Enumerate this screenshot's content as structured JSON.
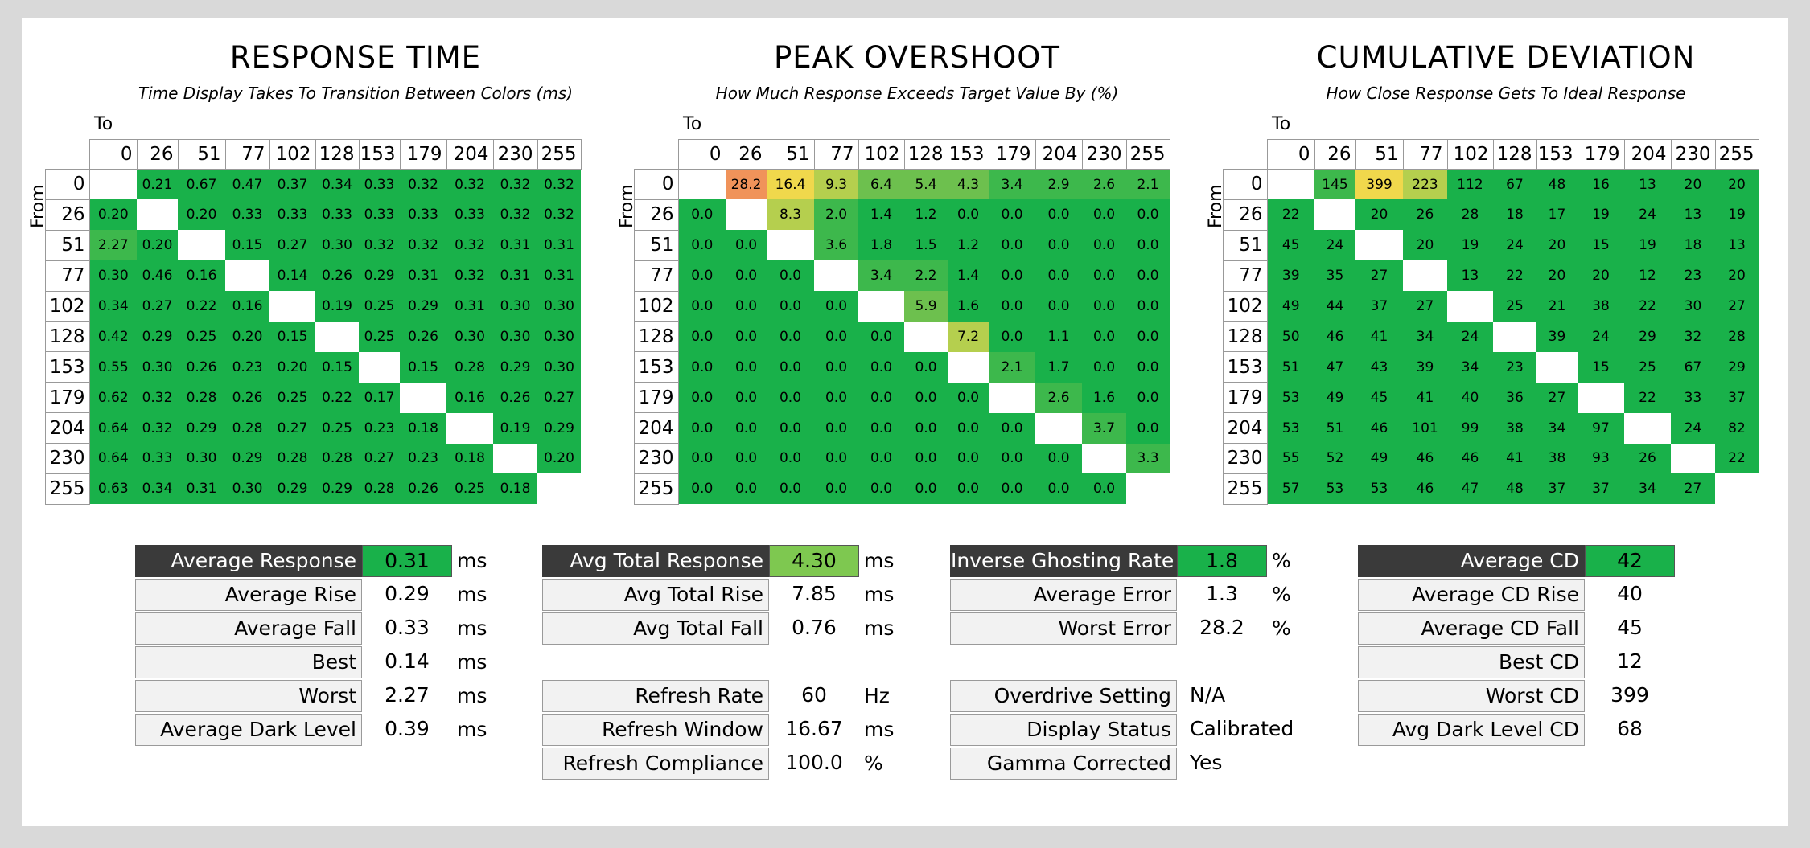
{
  "colors": {
    "good": "#19b14a",
    "mid_green": "#3db84c",
    "yellow_green": "#b5cf4e",
    "yellow": "#f0d84c",
    "orange": "#f0935a",
    "diagonal": "#ffffff"
  },
  "chart_data": [
    {
      "type": "heatmap",
      "title": "RESPONSE TIME",
      "subtitle": "Time Display Takes To Transition Between Colors (ms)",
      "x_axis_label": "To",
      "y_axis_label": "From",
      "columns": [
        "0",
        "26",
        "51",
        "77",
        "102",
        "128",
        "153",
        "179",
        "204",
        "230",
        "255"
      ],
      "rows": [
        "0",
        "26",
        "51",
        "77",
        "102",
        "128",
        "153",
        "179",
        "204",
        "230",
        "255"
      ],
      "values": [
        [
          "",
          "0.21",
          "0.67",
          "0.47",
          "0.37",
          "0.34",
          "0.33",
          "0.32",
          "0.32",
          "0.32",
          "0.32"
        ],
        [
          "0.20",
          "",
          "0.20",
          "0.33",
          "0.33",
          "0.33",
          "0.33",
          "0.33",
          "0.33",
          "0.32",
          "0.32"
        ],
        [
          "2.27",
          "0.20",
          "",
          "0.15",
          "0.27",
          "0.30",
          "0.32",
          "0.32",
          "0.32",
          "0.31",
          "0.31"
        ],
        [
          "0.30",
          "0.46",
          "0.16",
          "",
          "0.14",
          "0.26",
          "0.29",
          "0.31",
          "0.32",
          "0.31",
          "0.31"
        ],
        [
          "0.34",
          "0.27",
          "0.22",
          "0.16",
          "",
          "0.19",
          "0.25",
          "0.29",
          "0.31",
          "0.30",
          "0.30"
        ],
        [
          "0.42",
          "0.29",
          "0.25",
          "0.20",
          "0.15",
          "",
          "0.25",
          "0.26",
          "0.30",
          "0.30",
          "0.30"
        ],
        [
          "0.55",
          "0.30",
          "0.26",
          "0.23",
          "0.20",
          "0.15",
          "",
          "0.15",
          "0.28",
          "0.29",
          "0.30"
        ],
        [
          "0.62",
          "0.32",
          "0.28",
          "0.26",
          "0.25",
          "0.22",
          "0.17",
          "",
          "0.16",
          "0.26",
          "0.27"
        ],
        [
          "0.64",
          "0.32",
          "0.29",
          "0.28",
          "0.27",
          "0.25",
          "0.23",
          "0.18",
          "",
          "0.19",
          "0.29"
        ],
        [
          "0.64",
          "0.33",
          "0.30",
          "0.29",
          "0.28",
          "0.28",
          "0.27",
          "0.23",
          "0.18",
          "",
          "0.20"
        ],
        [
          "0.63",
          "0.34",
          "0.31",
          "0.30",
          "0.29",
          "0.29",
          "0.28",
          "0.26",
          "0.25",
          "0.18",
          ""
        ]
      ]
    },
    {
      "type": "heatmap",
      "title": "PEAK OVERSHOOT",
      "subtitle": "How Much Response Exceeds Target Value By (%)",
      "x_axis_label": "To",
      "y_axis_label": "From",
      "columns": [
        "0",
        "26",
        "51",
        "77",
        "102",
        "128",
        "153",
        "179",
        "204",
        "230",
        "255"
      ],
      "rows": [
        "0",
        "26",
        "51",
        "77",
        "102",
        "128",
        "153",
        "179",
        "204",
        "230",
        "255"
      ],
      "values": [
        [
          "",
          "28.2",
          "16.4",
          "9.3",
          "6.4",
          "5.4",
          "4.3",
          "3.4",
          "2.9",
          "2.6",
          "2.1"
        ],
        [
          "0.0",
          "",
          "8.3",
          "2.0",
          "1.4",
          "1.2",
          "0.0",
          "0.0",
          "0.0",
          "0.0",
          "0.0"
        ],
        [
          "0.0",
          "0.0",
          "",
          "3.6",
          "1.8",
          "1.5",
          "1.2",
          "0.0",
          "0.0",
          "0.0",
          "0.0"
        ],
        [
          "0.0",
          "0.0",
          "0.0",
          "",
          "3.4",
          "2.2",
          "1.4",
          "0.0",
          "0.0",
          "0.0",
          "0.0"
        ],
        [
          "0.0",
          "0.0",
          "0.0",
          "0.0",
          "",
          "5.9",
          "1.6",
          "0.0",
          "0.0",
          "0.0",
          "0.0"
        ],
        [
          "0.0",
          "0.0",
          "0.0",
          "0.0",
          "0.0",
          "",
          "7.2",
          "0.0",
          "1.1",
          "0.0",
          "0.0"
        ],
        [
          "0.0",
          "0.0",
          "0.0",
          "0.0",
          "0.0",
          "0.0",
          "",
          "2.1",
          "1.7",
          "0.0",
          "0.0"
        ],
        [
          "0.0",
          "0.0",
          "0.0",
          "0.0",
          "0.0",
          "0.0",
          "0.0",
          "",
          "2.6",
          "1.6",
          "0.0"
        ],
        [
          "0.0",
          "0.0",
          "0.0",
          "0.0",
          "0.0",
          "0.0",
          "0.0",
          "0.0",
          "",
          "3.7",
          "0.0"
        ],
        [
          "0.0",
          "0.0",
          "0.0",
          "0.0",
          "0.0",
          "0.0",
          "0.0",
          "0.0",
          "0.0",
          "",
          "3.3"
        ],
        [
          "0.0",
          "0.0",
          "0.0",
          "0.0",
          "0.0",
          "0.0",
          "0.0",
          "0.0",
          "0.0",
          "0.0",
          ""
        ]
      ]
    },
    {
      "type": "heatmap",
      "title": "CUMULATIVE DEVIATION",
      "subtitle": "How Close Response Gets To Ideal Response",
      "x_axis_label": "To",
      "y_axis_label": "From",
      "columns": [
        "0",
        "26",
        "51",
        "77",
        "102",
        "128",
        "153",
        "179",
        "204",
        "230",
        "255"
      ],
      "rows": [
        "0",
        "26",
        "51",
        "77",
        "102",
        "128",
        "153",
        "179",
        "204",
        "230",
        "255"
      ],
      "values": [
        [
          "",
          "145",
          "399",
          "223",
          "112",
          "67",
          "48",
          "16",
          "13",
          "20",
          "20"
        ],
        [
          "22",
          "",
          "20",
          "26",
          "28",
          "18",
          "17",
          "19",
          "24",
          "13",
          "19"
        ],
        [
          "45",
          "24",
          "",
          "20",
          "19",
          "24",
          "20",
          "15",
          "19",
          "18",
          "13"
        ],
        [
          "39",
          "35",
          "27",
          "",
          "13",
          "22",
          "20",
          "20",
          "12",
          "23",
          "20"
        ],
        [
          "49",
          "44",
          "37",
          "27",
          "",
          "25",
          "21",
          "38",
          "22",
          "30",
          "27"
        ],
        [
          "50",
          "46",
          "41",
          "34",
          "24",
          "",
          "39",
          "24",
          "29",
          "32",
          "28"
        ],
        [
          "51",
          "47",
          "43",
          "39",
          "34",
          "23",
          "",
          "15",
          "25",
          "67",
          "29"
        ],
        [
          "53",
          "49",
          "45",
          "41",
          "40",
          "36",
          "27",
          "",
          "22",
          "33",
          "37"
        ],
        [
          "53",
          "51",
          "46",
          "101",
          "99",
          "38",
          "34",
          "97",
          "",
          "24",
          "82"
        ],
        [
          "55",
          "52",
          "49",
          "46",
          "46",
          "41",
          "38",
          "93",
          "26",
          "",
          "22"
        ],
        [
          "57",
          "53",
          "53",
          "46",
          "47",
          "48",
          "37",
          "37",
          "34",
          "27",
          ""
        ]
      ]
    }
  ],
  "stats": {
    "response": [
      {
        "label": "Average Response",
        "value": "0.31",
        "unit": "ms",
        "style": "dark-hl"
      },
      {
        "label": "Average Rise",
        "value": "0.29",
        "unit": "ms",
        "style": ""
      },
      {
        "label": "Average Fall",
        "value": "0.33",
        "unit": "ms",
        "style": ""
      },
      {
        "label": "Best",
        "value": "0.14",
        "unit": "ms",
        "style": ""
      },
      {
        "label": "Worst",
        "value": "2.27",
        "unit": "ms",
        "style": ""
      },
      {
        "label": "Average Dark Level",
        "value": "0.39",
        "unit": "ms",
        "style": ""
      }
    ],
    "total": [
      {
        "label": "Avg Total Response",
        "value": "4.30",
        "unit": "ms",
        "style": "dark-hl2"
      },
      {
        "label": "Avg Total Rise",
        "value": "7.85",
        "unit": "ms",
        "style": ""
      },
      {
        "label": "Avg Total Fall",
        "value": "0.76",
        "unit": "ms",
        "style": ""
      }
    ],
    "refresh": [
      {
        "label": "Refresh Rate",
        "value": "60",
        "unit": "Hz",
        "style": ""
      },
      {
        "label": "Refresh Window",
        "value": "16.67",
        "unit": "ms",
        "style": ""
      },
      {
        "label": "Refresh Compliance",
        "value": "100.0",
        "unit": "%",
        "style": ""
      }
    ],
    "ghosting": [
      {
        "label": "Inverse Ghosting Rate",
        "value": "1.8",
        "unit": "%",
        "style": "dark-hl"
      },
      {
        "label": "Average Error",
        "value": "1.3",
        "unit": "%",
        "style": ""
      },
      {
        "label": "Worst Error",
        "value": "28.2",
        "unit": "%",
        "style": ""
      }
    ],
    "settings": [
      {
        "label": "Overdrive Setting",
        "value": "N/A",
        "unit": "",
        "style": "left"
      },
      {
        "label": "Display Status",
        "value": "Calibrated",
        "unit": "",
        "style": "left"
      },
      {
        "label": "Gamma Corrected",
        "value": "Yes",
        "unit": "",
        "style": "left"
      }
    ],
    "cd": [
      {
        "label": "Average CD",
        "value": "42",
        "unit": "",
        "style": "dark-hl"
      },
      {
        "label": "Average CD Rise",
        "value": "40",
        "unit": "",
        "style": ""
      },
      {
        "label": "Average CD Fall",
        "value": "45",
        "unit": "",
        "style": ""
      },
      {
        "label": "Best CD",
        "value": "12",
        "unit": "",
        "style": ""
      },
      {
        "label": "Worst CD",
        "value": "399",
        "unit": "",
        "style": ""
      },
      {
        "label": "Avg Dark Level CD",
        "value": "68",
        "unit": "",
        "style": ""
      }
    ]
  }
}
